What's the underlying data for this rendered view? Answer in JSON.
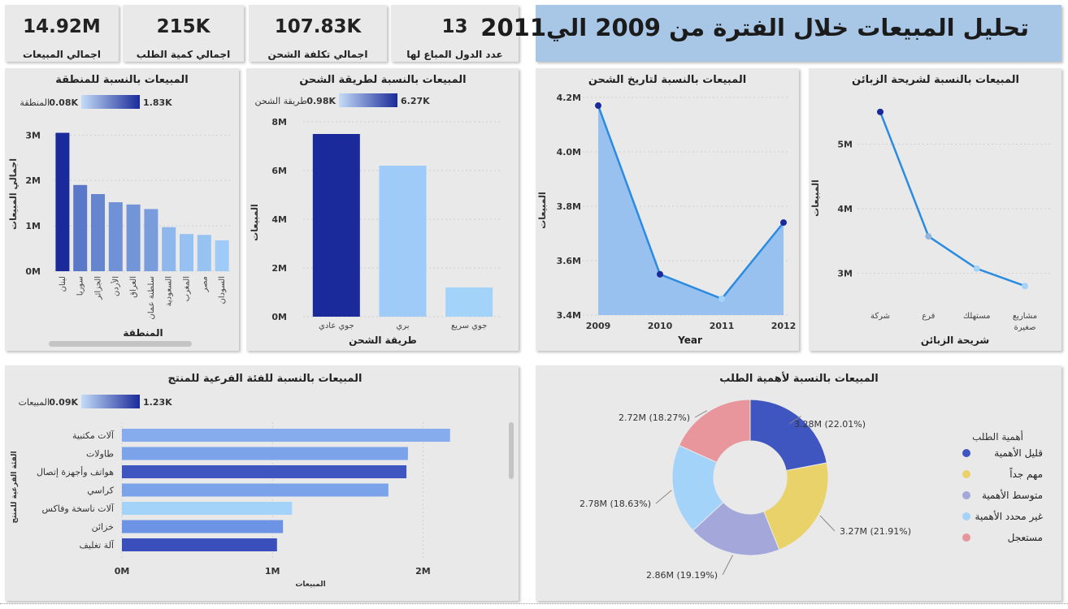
{
  "banner": {
    "title": "تحليل المبيعات خلال الفترة من 2009 الي2011"
  },
  "cards": [
    {
      "value": "14.92M",
      "label": "اجمالي المبيعات"
    },
    {
      "value": "215K",
      "label": "اجمالي كمية الطلب"
    },
    {
      "value": "107.83K",
      "label": "اجمالي تكلفة الشحن"
    },
    {
      "value": "13",
      "label": "عدد الدول المباع لها"
    }
  ],
  "colors": {
    "dark_blue": "#1a2a9a",
    "light_blue": "#9ecbf7",
    "line": "#2a8be0",
    "panel": "#e9e9e9"
  },
  "chart_data": [
    {
      "id": "region",
      "type": "bar",
      "title": "المبيعات بالنسبة للمنطقة",
      "xlabel": "المنطقة",
      "ylabel": "اجمالي المبيعات",
      "legend": {
        "label": "المنطقة",
        "min": "0.08K",
        "max": "1.83K"
      },
      "categories": [
        "لبنان",
        "سوريا",
        "الجزائر",
        "الأردن",
        "العراق",
        "سلطنة عمان",
        "السعودية",
        "المغرب",
        "مصر",
        "السودان"
      ],
      "values": [
        3.05,
        1.9,
        1.7,
        1.52,
        1.47,
        1.37,
        0.97,
        0.82,
        0.8,
        0.68
      ],
      "ylim": [
        0,
        3.4
      ],
      "yticks": [
        "0M",
        "1M",
        "2M",
        "3M"
      ]
    },
    {
      "id": "shipping",
      "type": "bar",
      "title": "المبيعات بالنسبة لطريقة الشحن",
      "xlabel": "طريقة الشحن",
      "ylabel": "المبيعات",
      "legend": {
        "label": "طريقة الشحن",
        "min": "0.98K",
        "max": "6.27K"
      },
      "categories": [
        "جوي عادي",
        "بري",
        "جوي سريع"
      ],
      "values": [
        7.5,
        6.2,
        1.2
      ],
      "ylim": [
        0,
        8
      ],
      "yticks": [
        "0M",
        "2M",
        "4M",
        "6M",
        "8M"
      ]
    },
    {
      "id": "ship_date",
      "type": "area",
      "title": "المبيعات بالنسبة لتاريخ الشحن",
      "xlabel": "Year",
      "ylabel": "المبيعات",
      "x": [
        "2009",
        "2010",
        "2011",
        "2012"
      ],
      "values": [
        4.17,
        3.55,
        3.46,
        3.74
      ],
      "ylim": [
        3.4,
        4.2
      ],
      "yticks": [
        "3.4M",
        "3.6M",
        "3.8M",
        "4.0M",
        "4.2M"
      ]
    },
    {
      "id": "segment",
      "type": "line",
      "title": "المبيعات بالنسبة لشريحة الزبائن",
      "xlabel": "شريحة الزبائن",
      "ylabel": "المبيعات",
      "categories": [
        "شركة",
        "فرع",
        "مستهلك",
        "مشاريع صغيرة"
      ],
      "values": [
        5.5,
        3.57,
        3.07,
        2.8
      ],
      "ylim": [
        2.4,
        5.8
      ],
      "yticks": [
        "3M",
        "4M",
        "5M"
      ]
    },
    {
      "id": "subcategory",
      "type": "bar",
      "orientation": "horizontal",
      "title": "المبيعات بالنسبة للفئة الفرعية للمنتج",
      "xlabel": "المبيعات",
      "ylabel": "الفئة الفرعية للمنتج",
      "legend": {
        "label": "المبيعات",
        "min": "0.09K",
        "max": "1.23K"
      },
      "categories": [
        "آلات مكتبية",
        "طاولات",
        "هواتف وأجهزة إتصال",
        "كراسي",
        "آلات ناسخة وفاكس",
        "خزائن",
        "آلة تغليف"
      ],
      "values": [
        2.18,
        1.9,
        1.89,
        1.77,
        1.13,
        1.07,
        1.03
      ],
      "xlim": [
        0,
        2.3
      ],
      "xticks": [
        "0M",
        "1M",
        "2M"
      ]
    },
    {
      "id": "priority",
      "type": "pie",
      "title": "المبيعات بالنسبة لأهمية الطلب",
      "legend_title": "أهمية الطلب",
      "slices": [
        {
          "name": "قليل الأهمية",
          "value": 3.28,
          "label": "3.28M (22.01%)",
          "color": "#3f56c0"
        },
        {
          "name": "مهم جداً",
          "value": 3.27,
          "label": "3.27M (21.91%)",
          "color": "#e9d26a"
        },
        {
          "name": "متوسط الأهمية",
          "value": 2.86,
          "label": "2.86M (19.19%)",
          "color": "#a3a7d9"
        },
        {
          "name": "غير محدد الأهمية",
          "value": 2.78,
          "label": "2.78M (18.63%)",
          "color": "#a4d3fa"
        },
        {
          "name": "مستعجل",
          "value": 2.72,
          "label": "2.72M (18.27%)",
          "color": "#e8959c"
        }
      ]
    }
  ]
}
